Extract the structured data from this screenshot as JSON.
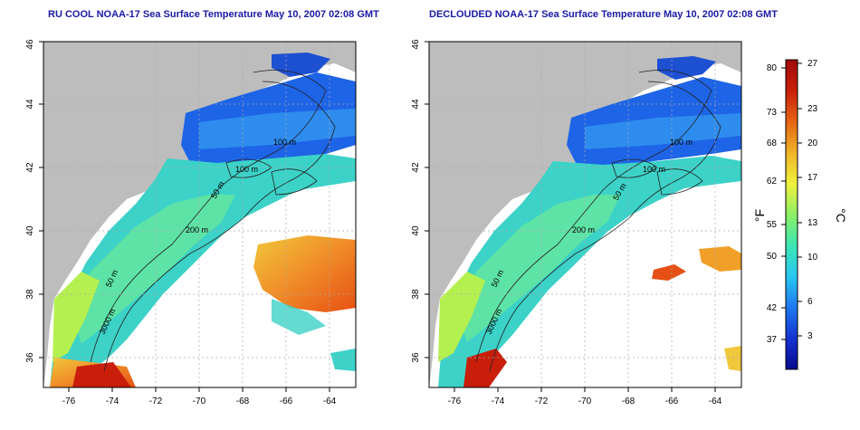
{
  "panels": [
    {
      "title": "RU COOL NOAA-17 Sea Surface Temperature May 10, 2007 02:08 GMT",
      "x_ticks": [
        "-76",
        "-74",
        "-72",
        "-70",
        "-68",
        "-66",
        "-64"
      ],
      "y_ticks": [
        "36",
        "38",
        "40",
        "42",
        "44",
        "46"
      ],
      "contour_labels": [
        "100 m",
        "100 m",
        "50 m",
        "200 m",
        "50 m",
        "3000 m"
      ]
    },
    {
      "title": "DECLOUDED NOAA-17 Sea Surface Temperature May 10, 2007 02:08 GMT",
      "x_ticks": [
        "-76",
        "-74",
        "-72",
        "-70",
        "-68",
        "-66",
        "-64"
      ],
      "y_ticks": [
        "36",
        "38",
        "40",
        "42",
        "44",
        "46"
      ],
      "contour_labels": [
        "100 m",
        "100 m",
        "50 m",
        "200 m",
        "50 m",
        "3000 m"
      ]
    }
  ],
  "colorbar": {
    "f_label": "°F",
    "c_label": "°C",
    "f_ticks": [
      "80",
      "73",
      "68",
      "62",
      "55",
      "50",
      "42",
      "37"
    ],
    "c_ticks": [
      "27",
      "23",
      "20",
      "17",
      "13",
      "10",
      "6",
      "3"
    ],
    "colors": [
      "#0a0a8c",
      "#1432d2",
      "#1e78f0",
      "#28c8f0",
      "#3ce6b4",
      "#8cf064",
      "#f0f03c",
      "#f0b428",
      "#e66414",
      "#c81e0a",
      "#a00a0a"
    ]
  },
  "map_colors": {
    "land": "#bdbdbd",
    "ocean_missing": "#ffffff"
  }
}
